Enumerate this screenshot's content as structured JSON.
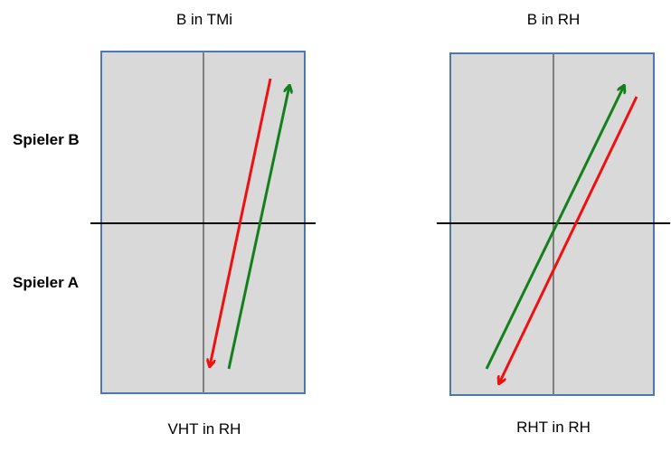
{
  "titles": {
    "left_top": "B in TMi",
    "right_top": "B in RH",
    "left_bottom": "VHT in RH",
    "right_bottom": "RHT in RH"
  },
  "players": {
    "upper": "Spieler B",
    "lower": "Spieler A"
  },
  "colors": {
    "table_fill": "#d9d9d9",
    "table_border": "#4a78b5",
    "center_line": "#7f7f7f",
    "net_line": "#000000",
    "arrow_red": "#ee1111",
    "arrow_green": "#14801c"
  }
}
